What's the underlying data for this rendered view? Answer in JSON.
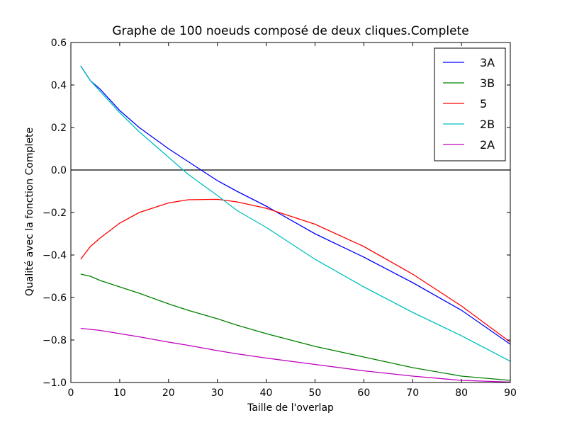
{
  "chart_data": {
    "type": "line",
    "title": "Graphe de 100 noeuds composé de deux cliques.Complete",
    "xlabel": "Taille de l'overlap",
    "ylabel": "Qualité avec la fonction Complete",
    "xlim": [
      0,
      90
    ],
    "ylim": [
      -1.0,
      0.6
    ],
    "xticks": [
      "0",
      "10",
      "20",
      "30",
      "40",
      "50",
      "60",
      "70",
      "80",
      "90"
    ],
    "yticks": [
      "−1.0",
      "−0.8",
      "−0.6",
      "−0.4",
      "−0.2",
      "0.0",
      "0.2",
      "0.4",
      "0.6"
    ],
    "grid": false,
    "legend_position": "top-right",
    "reference_line_y": 0.0,
    "x": [
      2,
      4,
      6,
      10,
      14,
      20,
      24,
      30,
      34,
      40,
      50,
      60,
      70,
      80,
      90
    ],
    "series": [
      {
        "name": "3A",
        "color": "#0000ff",
        "values": [
          0.49,
          0.42,
          0.38,
          0.28,
          0.2,
          0.1,
          0.04,
          -0.05,
          -0.1,
          -0.17,
          -0.3,
          -0.41,
          -0.53,
          -0.66,
          -0.82
        ]
      },
      {
        "name": "3B",
        "color": "#008000",
        "values": [
          -0.49,
          -0.5,
          -0.52,
          -0.55,
          -0.58,
          -0.63,
          -0.66,
          -0.7,
          -0.73,
          -0.77,
          -0.83,
          -0.88,
          -0.93,
          -0.97,
          -0.99
        ]
      },
      {
        "name": "5",
        "color": "#ff0000",
        "values": [
          -0.42,
          -0.36,
          -0.32,
          -0.25,
          -0.2,
          -0.155,
          -0.14,
          -0.138,
          -0.15,
          -0.18,
          -0.255,
          -0.36,
          -0.49,
          -0.64,
          -0.81
        ]
      },
      {
        "name": "2B",
        "color": "#00bfbf",
        "values": [
          0.49,
          0.42,
          0.37,
          0.27,
          0.18,
          0.06,
          -0.02,
          -0.12,
          -0.19,
          -0.27,
          -0.42,
          -0.55,
          -0.67,
          -0.78,
          -0.9
        ]
      },
      {
        "name": "2A",
        "color": "#bf00bf",
        "values": [
          -0.745,
          -0.75,
          -0.755,
          -0.77,
          -0.785,
          -0.81,
          -0.825,
          -0.85,
          -0.865,
          -0.885,
          -0.915,
          -0.945,
          -0.97,
          -0.99,
          -0.998
        ]
      }
    ]
  }
}
